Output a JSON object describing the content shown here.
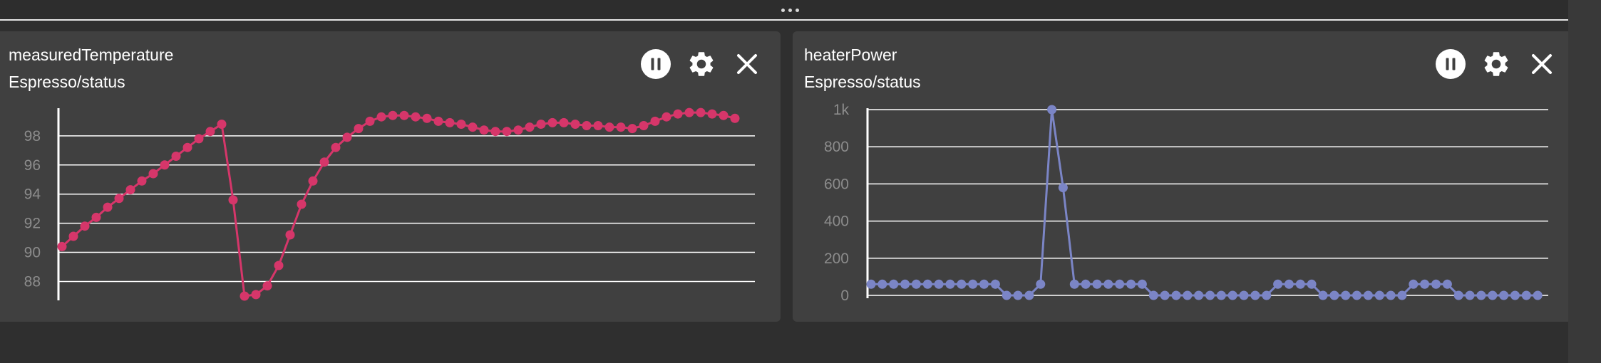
{
  "panels": [
    {
      "title": "measuredTemperature",
      "subtitle": "Espresso/status",
      "controls": {
        "pause": "pause-icon",
        "settings": "gear-icon",
        "close": "close-icon"
      },
      "chart_data": {
        "type": "line",
        "color": "#d6366a",
        "yticks": [
          "88",
          "90",
          "92",
          "94",
          "96",
          "98"
        ],
        "ylim": [
          86.9,
          99.8
        ],
        "grid": true,
        "x": [
          0,
          1,
          2,
          3,
          4,
          5,
          6,
          7,
          8,
          9,
          10,
          11,
          12,
          13,
          14,
          15,
          16,
          17,
          18,
          19,
          20,
          21,
          22,
          23,
          24,
          25,
          26,
          27,
          28,
          29,
          30,
          31,
          32,
          33,
          34,
          35,
          36,
          37,
          38,
          39,
          40,
          41,
          42,
          43,
          44,
          45,
          46,
          47,
          48,
          49,
          50,
          51,
          52,
          53,
          54,
          55,
          56,
          57,
          58,
          59
        ],
        "values": [
          90.4,
          91.1,
          91.8,
          92.4,
          93.1,
          93.7,
          94.3,
          94.9,
          95.4,
          96.0,
          96.6,
          97.2,
          97.8,
          98.3,
          98.8,
          93.6,
          87.0,
          87.1,
          87.7,
          89.1,
          91.2,
          93.3,
          94.9,
          96.2,
          97.2,
          97.9,
          98.5,
          99.0,
          99.3,
          99.4,
          99.4,
          99.3,
          99.2,
          99.0,
          98.9,
          98.8,
          98.6,
          98.4,
          98.3,
          98.3,
          98.4,
          98.6,
          98.8,
          98.9,
          98.9,
          98.8,
          98.7,
          98.7,
          98.6,
          98.6,
          98.5,
          98.7,
          99.0,
          99.3,
          99.5,
          99.6,
          99.6,
          99.5,
          99.4,
          99.2
        ]
      }
    },
    {
      "title": "heaterPower",
      "subtitle": "Espresso/status",
      "controls": {
        "pause": "pause-icon",
        "settings": "gear-icon",
        "close": "close-icon"
      },
      "chart_data": {
        "type": "line",
        "color": "#7b85c6",
        "yticks": [
          "0",
          "200",
          "400",
          "600",
          "800",
          "1k"
        ],
        "ylim": [
          0,
          1000
        ],
        "grid": true,
        "x": [
          0,
          1,
          2,
          3,
          4,
          5,
          6,
          7,
          8,
          9,
          10,
          11,
          12,
          13,
          14,
          15,
          16,
          17,
          18,
          19,
          20,
          21,
          22,
          23,
          24,
          25,
          26,
          27,
          28,
          29,
          30,
          31,
          32,
          33,
          34,
          35,
          36,
          37,
          38,
          39,
          40,
          41,
          42,
          43,
          44,
          45,
          46,
          47,
          48,
          49,
          50,
          51,
          52,
          53,
          54,
          55,
          56,
          57,
          58,
          59
        ],
        "values": [
          60,
          60,
          60,
          60,
          60,
          60,
          60,
          60,
          60,
          60,
          60,
          60,
          0,
          0,
          0,
          60,
          1000,
          580,
          60,
          60,
          60,
          60,
          60,
          60,
          60,
          0,
          0,
          0,
          0,
          0,
          0,
          0,
          0,
          0,
          0,
          0,
          60,
          60,
          60,
          60,
          0,
          0,
          0,
          0,
          0,
          0,
          0,
          0,
          60,
          60,
          60,
          60,
          0,
          0,
          0,
          0,
          0,
          0,
          0,
          0
        ]
      }
    }
  ]
}
